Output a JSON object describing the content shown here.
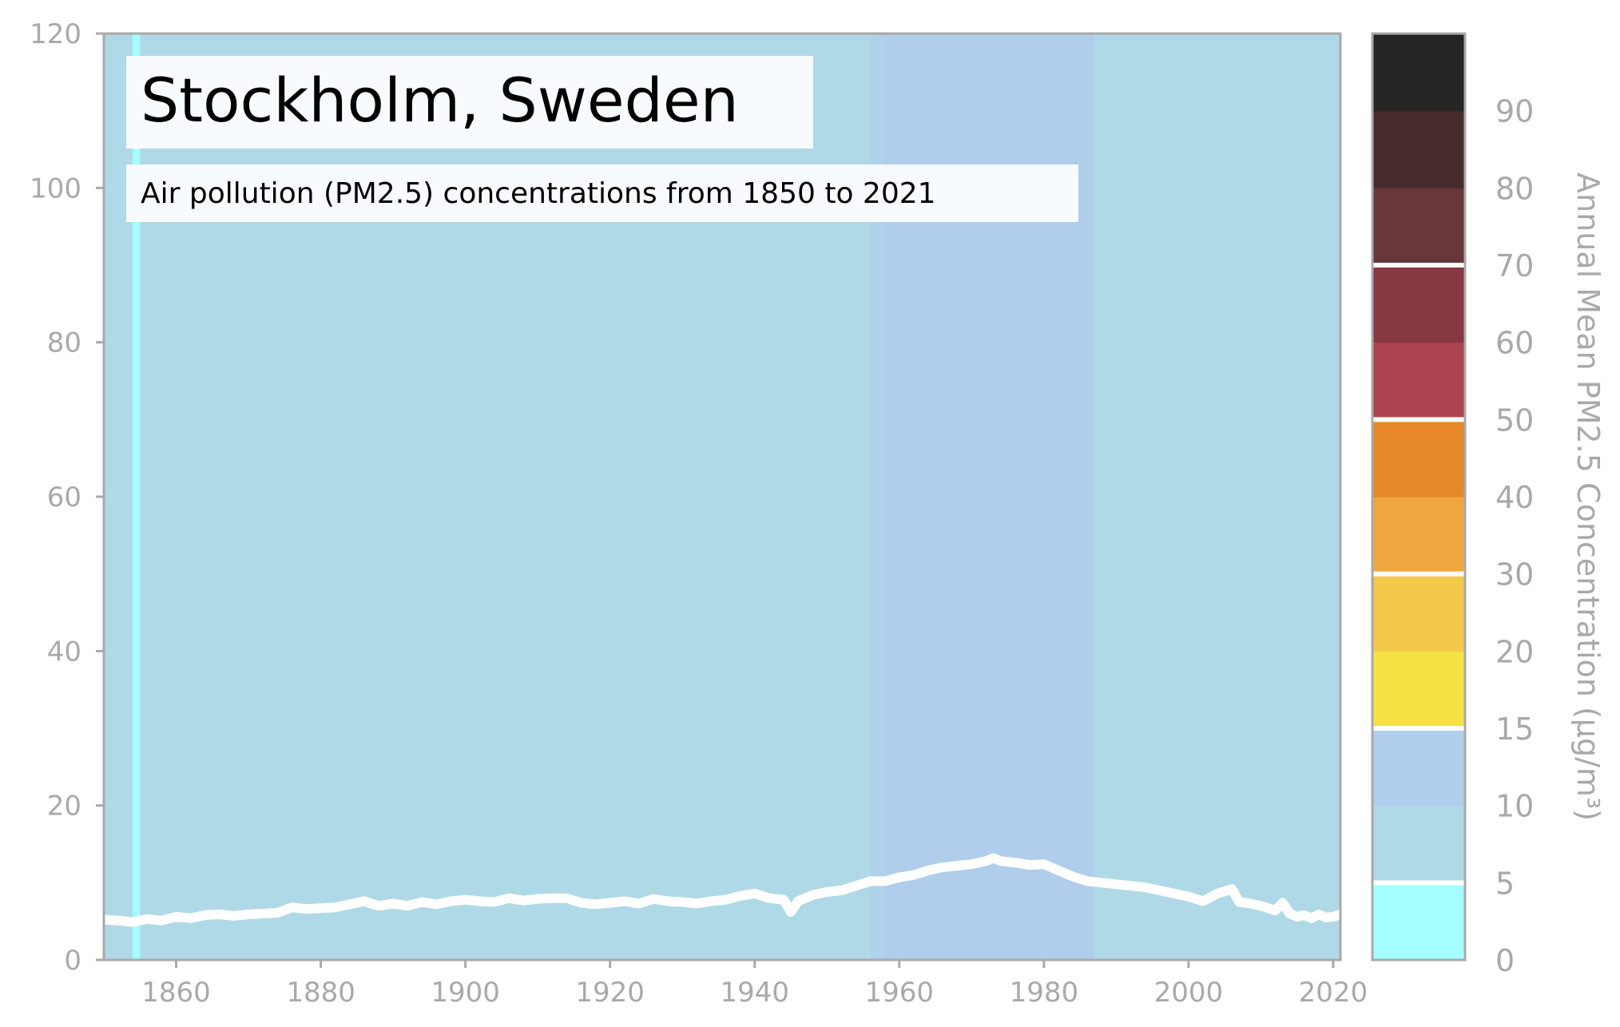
{
  "chart_data": {
    "type": "line",
    "title": "Stockholm, Sweden",
    "subtitle": "Air pollution (PM2.5) concentrations from 1850 to 2021",
    "xlabel": "",
    "ylabel": "",
    "xlim": [
      1850,
      2021
    ],
    "ylim": [
      0,
      120
    ],
    "x_ticks": [
      "1860",
      "1880",
      "1900",
      "1920",
      "1940",
      "1960",
      "1980",
      "2000",
      "2020"
    ],
    "y_ticks": [
      "0",
      "20",
      "40",
      "60",
      "80",
      "100",
      "120"
    ],
    "grid": false,
    "line_color": "#ffffff",
    "background_bands": [
      {
        "from": 1850,
        "to": 1854,
        "color": "#b0d9e8"
      },
      {
        "from": 1854,
        "to": 1855,
        "color": "#a6ffff"
      },
      {
        "from": 1855,
        "to": 1956,
        "color": "#b0d9e8"
      },
      {
        "from": 1956,
        "to": 1958,
        "color": "#b0d2ea"
      },
      {
        "from": 1958,
        "to": 1987,
        "color": "#b0ceec"
      },
      {
        "from": 1987,
        "to": 2021,
        "color": "#b0d9e8"
      }
    ],
    "series": [
      {
        "values_x": [
          1850,
          1852,
          1854,
          1856,
          1858,
          1860,
          1862,
          1864,
          1866,
          1868,
          1870,
          1872,
          1874,
          1876,
          1878,
          1880,
          1882,
          1884,
          1886,
          1888,
          1890,
          1892,
          1894,
          1896,
          1898,
          1900,
          1902,
          1904,
          1906,
          1908,
          1910,
          1912,
          1914,
          1916,
          1918,
          1920,
          1922,
          1924,
          1926,
          1928,
          1930,
          1932,
          1934,
          1936,
          1938,
          1940,
          1942,
          1944,
          1945,
          1946,
          1948,
          1950,
          1952,
          1954,
          1956,
          1958,
          1960,
          1962,
          1964,
          1966,
          1968,
          1970,
          1972,
          1973,
          1974,
          1976,
          1978,
          1980,
          1982,
          1984,
          1986,
          1988,
          1990,
          1992,
          1994,
          1996,
          1998,
          2000,
          2002,
          2004,
          2006,
          2007,
          2008,
          2010,
          2012,
          2013,
          2014,
          2015,
          2016,
          2017,
          2018,
          2019,
          2020,
          2021
        ],
        "values_y": [
          5.2,
          5.1,
          4.9,
          5.3,
          5.1,
          5.6,
          5.4,
          5.8,
          5.9,
          5.7,
          5.9,
          6.0,
          6.1,
          6.8,
          6.6,
          6.7,
          6.8,
          7.2,
          7.6,
          7.0,
          7.3,
          7.0,
          7.5,
          7.2,
          7.6,
          7.8,
          7.6,
          7.5,
          8.0,
          7.7,
          7.9,
          8.0,
          8.0,
          7.4,
          7.2,
          7.4,
          7.6,
          7.3,
          7.9,
          7.6,
          7.5,
          7.3,
          7.6,
          7.8,
          8.3,
          8.6,
          8.0,
          7.8,
          6.2,
          7.6,
          8.4,
          8.8,
          9.0,
          9.6,
          10.2,
          10.2,
          10.7,
          11.0,
          11.6,
          12.0,
          12.2,
          12.4,
          12.8,
          13.2,
          12.8,
          12.6,
          12.3,
          12.4,
          11.6,
          10.8,
          10.2,
          10.0,
          9.8,
          9.6,
          9.4,
          9.0,
          8.6,
          8.2,
          7.6,
          8.6,
          9.2,
          7.5,
          7.4,
          7.0,
          6.4,
          7.4,
          6.0,
          5.6,
          5.8,
          5.4,
          5.9,
          5.5,
          5.6,
          5.9
        ]
      }
    ],
    "colorbar": {
      "title": "Annual Mean PM2.5 Concentration (µg/m³)",
      "ticks": [
        "0",
        "5",
        "10",
        "15",
        "20",
        "30",
        "40",
        "50",
        "60",
        "70",
        "80",
        "90"
      ],
      "segments": [
        {
          "color": "#a6ffff"
        },
        {
          "color": "#b0d9e8"
        },
        {
          "color": "#b0ceec"
        },
        {
          "color": "#f7e244"
        },
        {
          "color": "#f3c84b"
        },
        {
          "color": "#f0a640"
        },
        {
          "color": "#e6872a"
        },
        {
          "color": "#ad434f"
        },
        {
          "color": "#873843"
        },
        {
          "color": "#673739"
        },
        {
          "color": "#462b2d"
        },
        {
          "color": "#252525"
        }
      ],
      "separators_after_segment": [
        0,
        2,
        4,
        6,
        8
      ]
    }
  }
}
